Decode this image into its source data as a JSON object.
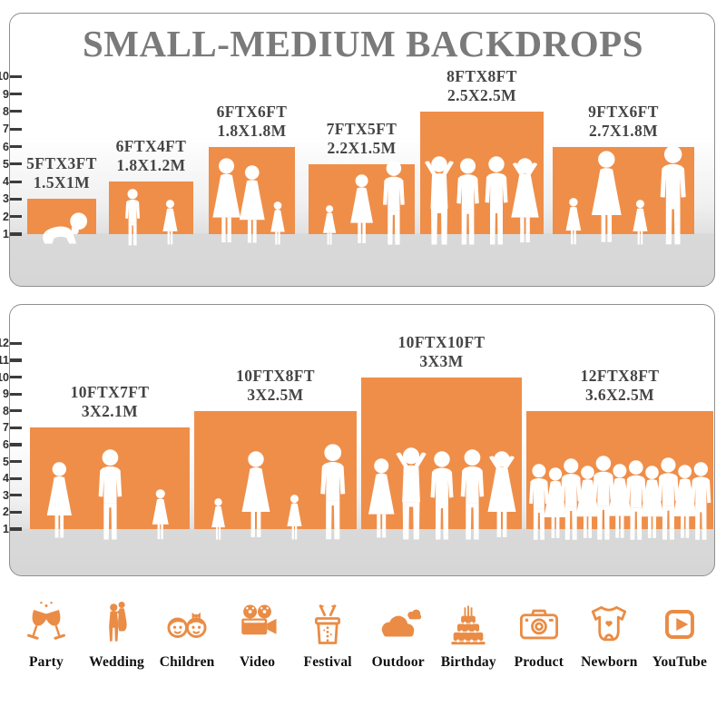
{
  "title": {
    "text": "SMALL-MEDIUM BACKDROPS"
  },
  "colors": {
    "bar_orange": "#EF8E49",
    "icon_orange": "#EA8C45",
    "title_gray": "#7A7A7A",
    "label_gray": "#454545",
    "tick_dark": "#2F2F2F",
    "floor_gray": "#D9D9D9",
    "silhouette_white": "#FFFFFF"
  },
  "chart_data": [
    {
      "type": "bar",
      "title": "SMALL-MEDIUM BACKDROPS",
      "categories": [
        "5FTX3FT",
        "6FTX4FT",
        "6FTX6FT",
        "7FTX5FT",
        "8FTX8FT",
        "9FTX6FT"
      ],
      "size_meters": [
        "1.5X1M",
        "1.8X1.2M",
        "1.8X1.8M",
        "2.2X1.5M",
        "2.5X2.5M",
        "2.7X1.8M"
      ],
      "values": [
        3,
        4,
        6,
        5,
        8,
        6
      ],
      "xlabel": "",
      "ylabel": "",
      "ylim": [
        1,
        10
      ],
      "yticks": [
        1,
        2,
        3,
        4,
        5,
        6,
        7,
        8,
        9,
        10
      ],
      "grid": false,
      "legend": "none",
      "figures": [
        [
          "baby"
        ],
        [
          "boy",
          "girl"
        ],
        [
          "woman",
          "woman",
          "girl"
        ],
        [
          "girl",
          "woman",
          "man"
        ],
        [
          "man-up",
          "man",
          "man",
          "woman-up"
        ],
        [
          "girl",
          "woman",
          "girl",
          "man"
        ]
      ]
    },
    {
      "type": "bar",
      "title": "",
      "categories": [
        "10FTX7FT",
        "10FTX8FT",
        "10FTX10FT",
        "12FTX8FT"
      ],
      "size_meters": [
        "3X2.1M",
        "3X2.5M",
        "3X3M",
        "3.6X2.5M"
      ],
      "values": [
        7,
        8,
        10,
        8
      ],
      "xlabel": "",
      "ylabel": "",
      "ylim": [
        1,
        12
      ],
      "yticks": [
        1,
        2,
        3,
        4,
        5,
        6,
        7,
        8,
        9,
        10,
        11,
        12
      ],
      "grid": false,
      "legend": "none",
      "figures": [
        [
          "woman",
          "man",
          "girl"
        ],
        [
          "girl",
          "woman",
          "girl",
          "man"
        ],
        [
          "woman",
          "man-up",
          "man",
          "man",
          "woman-up"
        ],
        [
          "man",
          "woman",
          "man",
          "woman",
          "man",
          "woman",
          "man",
          "woman",
          "man",
          "woman",
          "man"
        ]
      ]
    }
  ],
  "icons": [
    {
      "name": "party-icon",
      "label": "Party"
    },
    {
      "name": "wedding-icon",
      "label": "Wedding"
    },
    {
      "name": "children-icon",
      "label": "Children"
    },
    {
      "name": "video-icon",
      "label": "Video"
    },
    {
      "name": "festival-icon",
      "label": "Festival"
    },
    {
      "name": "outdoor-icon",
      "label": "Outdoor"
    },
    {
      "name": "birthday-icon",
      "label": "Birthday"
    },
    {
      "name": "product-icon",
      "label": "Product"
    },
    {
      "name": "newborn-icon",
      "label": "Newborn"
    },
    {
      "name": "youtube-icon",
      "label": "YouTube"
    }
  ]
}
